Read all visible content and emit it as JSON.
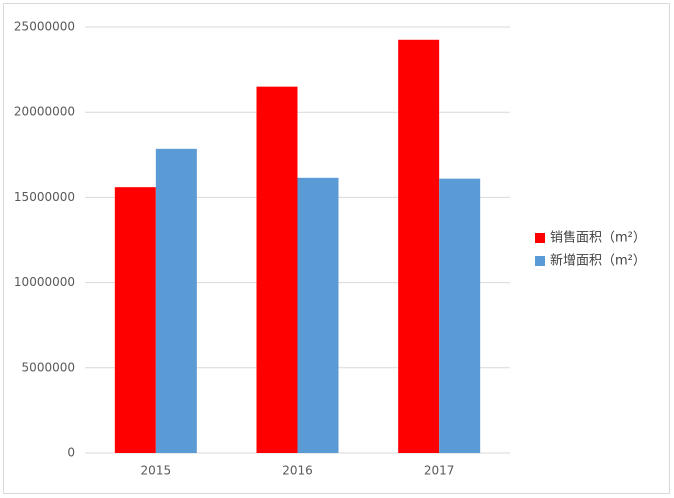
{
  "chart_data": {
    "type": "bar",
    "categories": [
      "2015",
      "2016",
      "2017"
    ],
    "series": [
      {
        "name": "销售面积（m²）",
        "color": "#ff0000",
        "values": [
          15600000,
          21500000,
          24250000
        ]
      },
      {
        "name": "新增面积（m²）",
        "color": "#5b9bd5",
        "values": [
          17850000,
          16150000,
          16100000
        ]
      }
    ],
    "ylim": [
      0,
      25000000
    ],
    "yticks": [
      0,
      5000000,
      10000000,
      15000000,
      20000000,
      25000000
    ],
    "grid": true,
    "legend": "right"
  }
}
